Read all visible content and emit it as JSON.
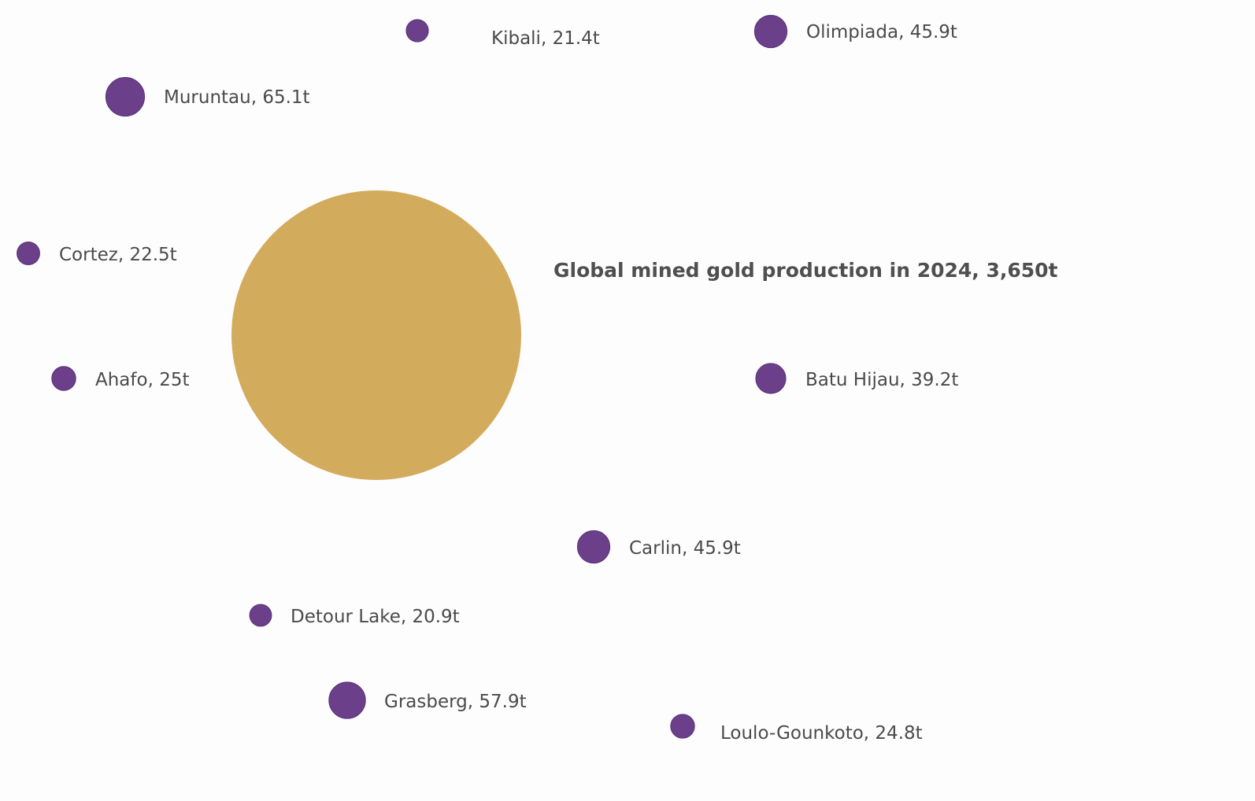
{
  "chart_data": {
    "type": "bubble",
    "unit": "t",
    "total": {
      "label": "Global mined gold production in 2024, 3,650t",
      "value": 3650
    },
    "mines": [
      {
        "name": "Kibali",
        "value": 21.4,
        "label": "Kibali, 21.4t"
      },
      {
        "name": "Olimpiada",
        "value": 45.9,
        "label": "Olimpiada, 45.9t"
      },
      {
        "name": "Muruntau",
        "value": 65.1,
        "label": "Muruntau, 65.1t"
      },
      {
        "name": "Cortez",
        "value": 22.5,
        "label": "Cortez, 22.5t"
      },
      {
        "name": "Ahafo",
        "value": 25,
        "label": "Ahafo, 25t"
      },
      {
        "name": "Batu Hijau",
        "value": 39.2,
        "label": "Batu Hijau, 39.2t"
      },
      {
        "name": "Carlin",
        "value": 45.9,
        "label": "Carlin, 45.9t"
      },
      {
        "name": "Detour Lake",
        "value": 20.9,
        "label": "Detour Lake, 20.9t"
      },
      {
        "name": "Grasberg",
        "value": 57.9,
        "label": "Grasberg, 57.9t"
      },
      {
        "name": "Loulo-Gounkoto",
        "value": 24.8,
        "label": "Loulo-Gounkoto, 24.8t"
      }
    ],
    "colors": {
      "total": "#d3ab5d",
      "mine": "#6b3f8a",
      "mine_stroke": "#5a3377"
    }
  }
}
